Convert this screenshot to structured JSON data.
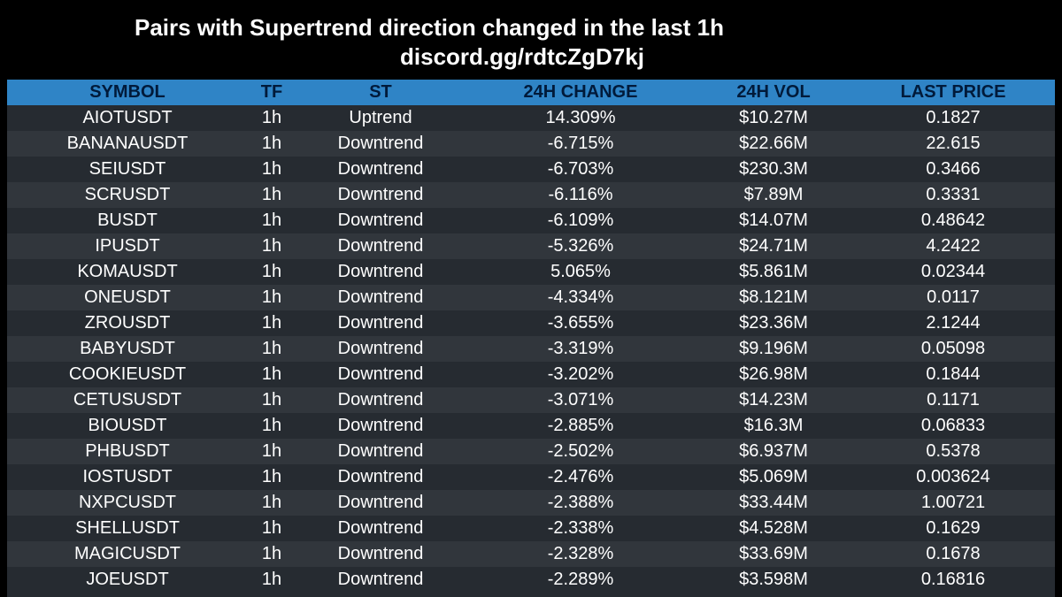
{
  "title": {
    "line1": "Pairs with Supertrend direction changed in the last 1h",
    "line2": "discord.gg/rdtcZgD7kj"
  },
  "table": {
    "headers": [
      "SYMBOL",
      "TF",
      "ST",
      "24H CHANGE",
      "24H VOL",
      "LAST PRICE"
    ],
    "rows": [
      [
        "AIOTUSDT",
        "1h",
        "Uptrend",
        "14.309%",
        "$10.27M",
        "0.1827"
      ],
      [
        "BANANAUSDT",
        "1h",
        "Downtrend",
        "-6.715%",
        "$22.66M",
        "22.615"
      ],
      [
        "SEIUSDT",
        "1h",
        "Downtrend",
        "-6.703%",
        "$230.3M",
        "0.3466"
      ],
      [
        "SCRUSDT",
        "1h",
        "Downtrend",
        "-6.116%",
        "$7.89M",
        "0.3331"
      ],
      [
        "BUSDT",
        "1h",
        "Downtrend",
        "-6.109%",
        "$14.07M",
        "0.48642"
      ],
      [
        "IPUSDT",
        "1h",
        "Downtrend",
        "-5.326%",
        "$24.71M",
        "4.2422"
      ],
      [
        "KOMAUSDT",
        "1h",
        "Downtrend",
        "5.065%",
        "$5.861M",
        "0.02344"
      ],
      [
        "ONEUSDT",
        "1h",
        "Downtrend",
        "-4.334%",
        "$8.121M",
        "0.0117"
      ],
      [
        "ZROUSDT",
        "1h",
        "Downtrend",
        "-3.655%",
        "$23.36M",
        "2.1244"
      ],
      [
        "BABYUSDT",
        "1h",
        "Downtrend",
        "-3.319%",
        "$9.196M",
        "0.05098"
      ],
      [
        "COOKIEUSDT",
        "1h",
        "Downtrend",
        "-3.202%",
        "$26.98M",
        "0.1844"
      ],
      [
        "CETUSUSDT",
        "1h",
        "Downtrend",
        "-3.071%",
        "$14.23M",
        "0.1171"
      ],
      [
        "BIOUSDT",
        "1h",
        "Downtrend",
        "-2.885%",
        "$16.3M",
        "0.06833"
      ],
      [
        "PHBUSDT",
        "1h",
        "Downtrend",
        "-2.502%",
        "$6.937M",
        "0.5378"
      ],
      [
        "IOSTUSDT",
        "1h",
        "Downtrend",
        "-2.476%",
        "$5.069M",
        "0.003624"
      ],
      [
        "NXPCUSDT",
        "1h",
        "Downtrend",
        "-2.388%",
        "$33.44M",
        "1.00721"
      ],
      [
        "SHELLUSDT",
        "1h",
        "Downtrend",
        "-2.338%",
        "$4.528M",
        "0.1629"
      ],
      [
        "MAGICUSDT",
        "1h",
        "Downtrend",
        "-2.328%",
        "$33.69M",
        "0.1678"
      ],
      [
        "JOEUSDT",
        "1h",
        "Downtrend",
        "-2.289%",
        "$3.598M",
        "0.16816"
      ]
    ]
  },
  "colors": {
    "background": "#000000",
    "header_bg": "#2f84c6",
    "header_text": "#001a3a",
    "row_odd": "#262b31",
    "row_even": "#31363c",
    "text": "#ffffff"
  }
}
